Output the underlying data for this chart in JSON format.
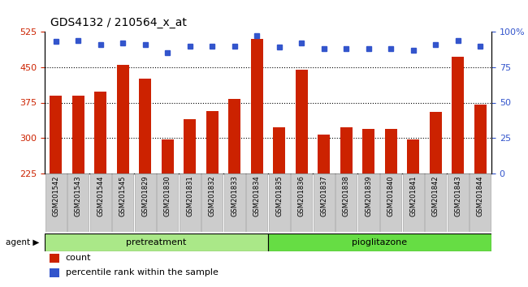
{
  "title": "GDS4132 / 210564_x_at",
  "categories": [
    "GSM201542",
    "GSM201543",
    "GSM201544",
    "GSM201545",
    "GSM201829",
    "GSM201830",
    "GSM201831",
    "GSM201832",
    "GSM201833",
    "GSM201834",
    "GSM201835",
    "GSM201836",
    "GSM201837",
    "GSM201838",
    "GSM201839",
    "GSM201840",
    "GSM201841",
    "GSM201842",
    "GSM201843",
    "GSM201844"
  ],
  "bar_values": [
    390,
    390,
    398,
    455,
    425,
    297,
    340,
    357,
    382,
    510,
    323,
    445,
    307,
    322,
    320,
    320,
    297,
    355,
    472,
    370
  ],
  "percentile_values": [
    93,
    94,
    91,
    92,
    91,
    85,
    90,
    90,
    90,
    97,
    89,
    92,
    88,
    88,
    88,
    88,
    87,
    91,
    94,
    90
  ],
  "pretreatment_count": 10,
  "pioglitazone_count": 10,
  "bar_color": "#cc2200",
  "percentile_color": "#3355cc",
  "ylim_left": [
    225,
    525
  ],
  "ylim_right": [
    0,
    100
  ],
  "yticks_left": [
    225,
    300,
    375,
    450,
    525
  ],
  "yticks_right": [
    0,
    25,
    50,
    75,
    100
  ],
  "grid_values": [
    300,
    375,
    450
  ],
  "pretreatment_color": "#aae888",
  "pioglitazone_color": "#66dd44",
  "agent_label": "agent",
  "pretreatment_label": "pretreatment",
  "pioglitazone_label": "pioglitazone",
  "legend_count_label": "count",
  "legend_percentile_label": "percentile rank within the sample",
  "bg_color": "#ffffff",
  "tick_label_color_left": "#cc2200",
  "tick_label_color_right": "#3355cc",
  "title_fontsize": 10,
  "bar_width": 0.55,
  "xtick_bg_color": "#cccccc",
  "xtick_border_color": "#aaaaaa"
}
